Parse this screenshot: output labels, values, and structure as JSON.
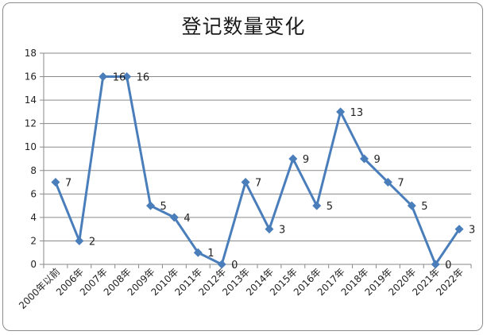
{
  "chart_data": {
    "type": "line",
    "title": "登记数量变化",
    "xlabel": "",
    "ylabel": "",
    "categories": [
      "2000年以前",
      "2006年",
      "2007年",
      "2008年",
      "2009年",
      "2010年",
      "2011年",
      "2012年",
      "2013年",
      "2014年",
      "2015年",
      "2016年",
      "2017年",
      "2018年",
      "2019年",
      "2020年",
      "2021年",
      "2022年"
    ],
    "series": [
      {
        "values": [
          7,
          2,
          16,
          16,
          5,
          4,
          1,
          0,
          7,
          3,
          9,
          5,
          13,
          9,
          7,
          5,
          0,
          3
        ]
      }
    ],
    "ylim": [
      0,
      18
    ],
    "yticks": [
      0,
      2,
      4,
      6,
      8,
      10,
      12,
      14,
      16,
      18
    ],
    "grid": true,
    "legend": "none",
    "line_color": "#4a7ebb",
    "marker": "diamond"
  }
}
